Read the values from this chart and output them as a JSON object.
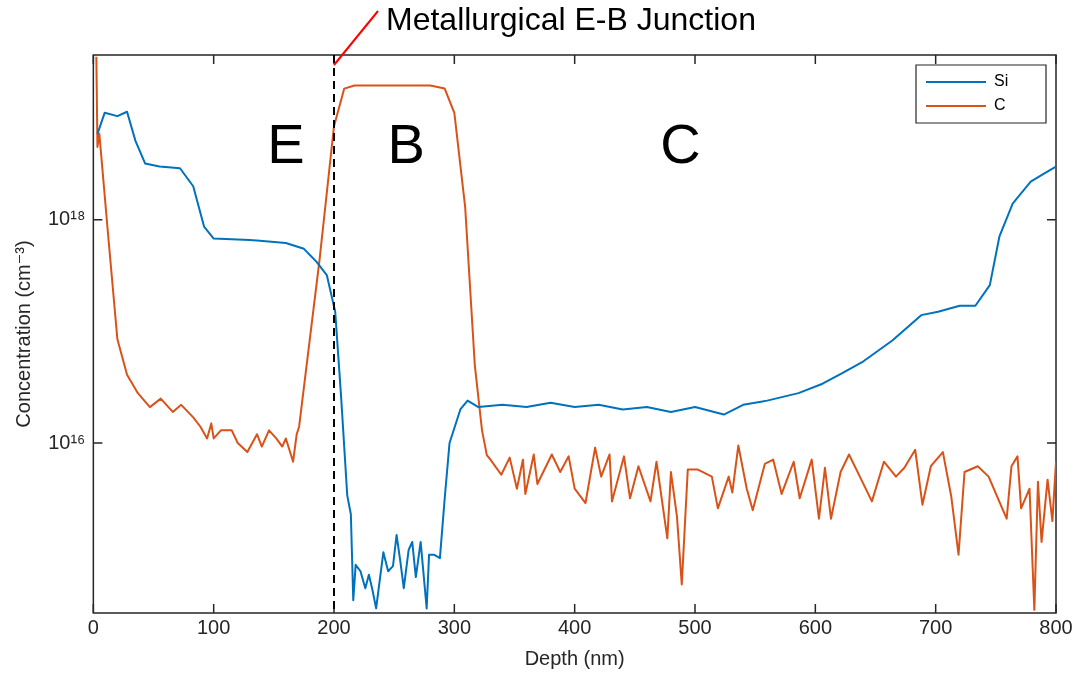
{
  "chart_data": {
    "type": "line",
    "xlabel": "Depth (nm)",
    "ylabel": "Concentration (cm⁻³)",
    "log": "y",
    "xlim": [
      0,
      800
    ],
    "xticks": [
      0,
      100,
      200,
      300,
      400,
      500,
      600,
      700,
      800
    ],
    "ylim": [
      300000000000000.0,
      3e+19
    ],
    "yticks": [
      {
        "value": 1e+16,
        "label": "10¹⁶"
      },
      {
        "value": 1e+18,
        "label": "10¹⁸"
      }
    ],
    "legend": "top right",
    "marker": "none",
    "line_style": "solid",
    "series": [
      {
        "name": "Si",
        "color": "#0072bd",
        "x": [
          3.4,
          9.4,
          20,
          28,
          35,
          43,
          55,
          72,
          83,
          92,
          100,
          130,
          160,
          175,
          185.5,
          194,
          201,
          206,
          211,
          214,
          216,
          218,
          222,
          226,
          229,
          232,
          235,
          241,
          245,
          249,
          252,
          255,
          258,
          262,
          265,
          268,
          272,
          277,
          279,
          283,
          288,
          292,
          296,
          305,
          311,
          320,
          340,
          360,
          380,
          400,
          420,
          440,
          460,
          480,
          500,
          524,
          540,
          560,
          586,
          606,
          622,
          640,
          664,
          688,
          702,
          720,
          733,
          745,
          753,
          764,
          779,
          790,
          800
        ],
        "values": [
          5.9e+18,
          9.1e+18,
          8.5e+18,
          9.3e+18,
          5.1e+18,
          3.2e+18,
          3e+18,
          2.9e+18,
          2e+18,
          8.7e+17,
          6.8e+17,
          6.6e+17,
          6.2e+17,
          5.5e+17,
          4.2e+17,
          3.2e+17,
          1.5e+17,
          2.5e+16,
          3400000000000000.0,
          2300000000000000.0,
          390000000000000.0,
          810000000000000.0,
          710000000000000.0,
          500000000000000.0,
          660000000000000.0,
          480000000000000.0,
          330000000000000.0,
          1050000000000000.0,
          710000000000000.0,
          790000000000000.0,
          1500000000000000.0,
          890000000000000.0,
          500000000000000.0,
          1100000000000000.0,
          1300000000000000.0,
          630000000000000.0,
          1300000000000000.0,
          330000000000000.0,
          1000000000000000.0,
          1000000000000000.0,
          930000000000000.0,
          3200000000000000.0,
          1e+16,
          2e+16,
          2.4e+16,
          2.1e+16,
          2.2e+16,
          2.1e+16,
          2.3e+16,
          2.1e+16,
          2.2e+16,
          2e+16,
          2.1e+16,
          1.9e+16,
          2.1e+16,
          1.8e+16,
          2.2e+16,
          2.4e+16,
          2.8e+16,
          3.4e+16,
          4.2e+16,
          5.4e+16,
          8.3e+16,
          1.4e+17,
          1.5e+17,
          1.7e+17,
          1.7e+17,
          2.6e+17,
          7.1e+17,
          1.4e+18,
          2.2e+18,
          2.6e+18,
          3e+18
        ]
      },
      {
        "name": "C",
        "color": "#d95319",
        "x": [
          2.5,
          3.4,
          5,
          12,
          20,
          28,
          37,
          47,
          56,
          66,
          73,
          83,
          89,
          94.5,
          98,
          100,
          106,
          115,
          120,
          128,
          136,
          140,
          146,
          152,
          157,
          160,
          166,
          169,
          171,
          183,
          188,
          200,
          208.5,
          217,
          250,
          280,
          292,
          300,
          309,
          317,
          323,
          327,
          330,
          339,
          346,
          352,
          357,
          359,
          366,
          369,
          381,
          388,
          395,
          400,
          409,
          417,
          422,
          429,
          431,
          441,
          446,
          453,
          463,
          468,
          477,
          480,
          485,
          489,
          494,
          502,
          514,
          519,
          528,
          531,
          536,
          543,
          548,
          558,
          565,
          572,
          582,
          587,
          597,
          603,
          608,
          613,
          621,
          628,
          637,
          647,
          657,
          667,
          674,
          683,
          689,
          696,
          706,
          713,
          719,
          724,
          735,
          744,
          759,
          763,
          768,
          771,
          778,
          782,
          785,
          788,
          793,
          797,
          800
        ],
        "values": [
          2.9e+19,
          4.5e+18,
          5.9e+18,
          7.9e+17,
          8.5e+16,
          4.1e+16,
          2.8e+16,
          2.1e+16,
          2.5e+16,
          1.9e+16,
          2.2e+16,
          1.7e+16,
          1.4e+16,
          1.1e+16,
          1.5e+16,
          1.1e+16,
          1.3e+16,
          1.3e+16,
          1e+16,
          8300000000000000.0,
          1.2e+16,
          9300000000000000.0,
          1.3e+16,
          1.1e+16,
          9300000000000000.0,
          1.1e+16,
          6800000000000000.0,
          1.2e+16,
          1.4e+16,
          1.6e+17,
          4.4e+17,
          6.9e+18,
          1.5e+19,
          1.6e+19,
          1.6e+19,
          1.6e+19,
          1.5e+19,
          9.1e+18,
          1.3e+18,
          5e+16,
          1.3e+16,
          7800000000000000.0,
          7100000000000000.0,
          5200000000000000.0,
          7400000000000000.0,
          3900000000000000.0,
          7100000000000000.0,
          3500000000000000.0,
          7900000000000000.0,
          4300000000000000.0,
          7900000000000000.0,
          5500000000000000.0,
          7600000000000000.0,
          3900000000000000.0,
          2900000000000000.0,
          9100000000000000.0,
          5000000000000000.0,
          7900000000000000.0,
          3000000000000000.0,
          7600000000000000.0,
          3200000000000000.0,
          6200000000000000.0,
          3000000000000000.0,
          6800000000000000.0,
          1400000000000000.0,
          5500000000000000.0,
          2200000000000000.0,
          540000000000000.0,
          5800000000000000.0,
          5800000000000000.0,
          5000000000000000.0,
          2600000000000000.0,
          5000000000000000.0,
          3600000000000000.0,
          9500000000000000.0,
          3900000000000000.0,
          2500000000000000.0,
          6500000000000000.0,
          7100000000000000.0,
          3500000000000000.0,
          6800000000000000.0,
          3200000000000000.0,
          7100000000000000.0,
          2100000000000000.0,
          6000000000000000.0,
          2100000000000000.0,
          5500000000000000.0,
          7900000000000000.0,
          5000000000000000.0,
          3000000000000000.0,
          6800000000000000.0,
          5000000000000000.0,
          6000000000000000.0,
          8700000000000000.0,
          2800000000000000.0,
          6200000000000000.0,
          8300000000000000.0,
          3300000000000000.0,
          1000000000000000.0,
          5500000000000000.0,
          6200000000000000.0,
          5000000000000000.0,
          2100000000000000.0,
          6200000000000000.0,
          7600000000000000.0,
          2600000000000000.0,
          3900000000000000.0,
          320000000000000.0,
          4500000000000000.0,
          1300000000000000.0,
          4700000000000000.0,
          2000000000000000.0,
          6800000000000000.0
        ]
      }
    ],
    "ref_lines": [
      {
        "axis": "x",
        "value": 200,
        "label": "Metallurgical E-B Junction",
        "color": "#000000",
        "line_style": "dashed"
      }
    ],
    "annotations": [
      "E",
      "B",
      "C"
    ]
  }
}
